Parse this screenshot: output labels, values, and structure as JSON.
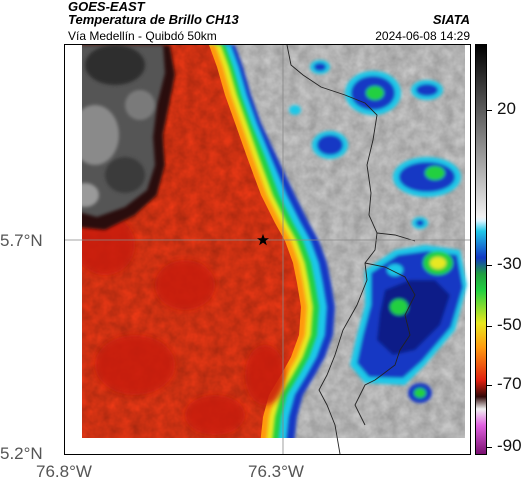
{
  "header": {
    "satellite": "GOES-EAST",
    "product": "Temperatura de Brillo CH13",
    "route": "Vía Medellín - Quibdó 50km",
    "brand": "SIATA",
    "timestamp": "2024-06-08 14:29"
  },
  "axes": {
    "y_ticks": [
      "5.7°N",
      "5.2°N"
    ],
    "x_ticks": [
      "76.8°W",
      "76.3°W"
    ]
  },
  "colorbar": {
    "ticks": [
      "20",
      "-30",
      "-50",
      "-70",
      "-90"
    ],
    "tick_values": [
      20,
      -30,
      -50,
      -70,
      -90
    ],
    "range": [
      -95,
      40
    ]
  },
  "map": {
    "marker": "star-marker"
  }
}
